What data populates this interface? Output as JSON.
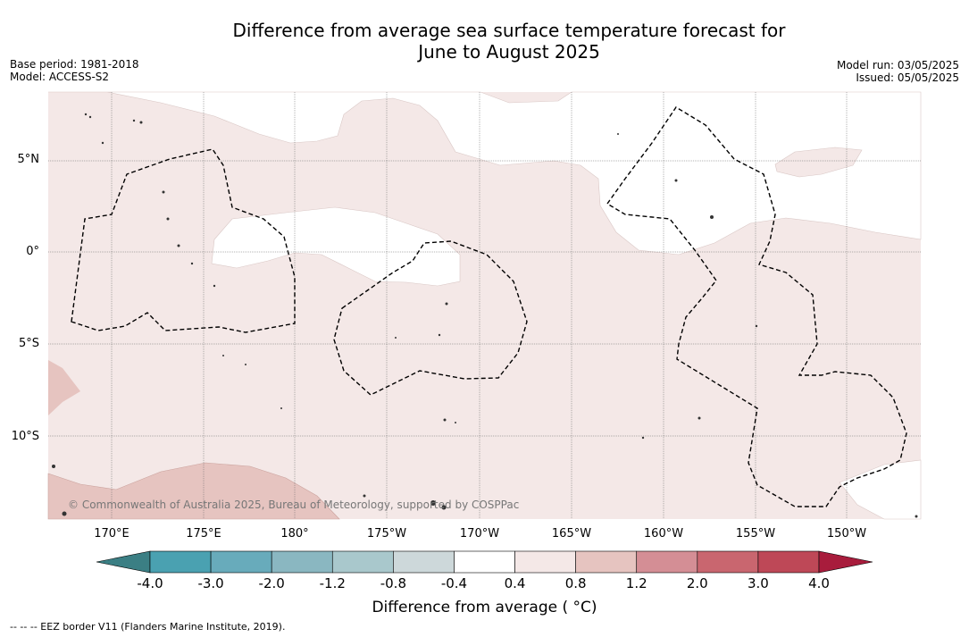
{
  "title_line1": "Difference from average sea surface temperature forecast for",
  "title_line2": "June to August 2025",
  "base_period": "Base period: 1981-2018",
  "model": "Model: ACCESS-S2",
  "model_run": "Model run: 03/05/2025",
  "issued": "Issued: 05/05/2025",
  "copyright": "© Commonwealth of Australia 2025, Bureau of Meteorology, supported by COSPPac",
  "lat_labels": [
    "5°N",
    "0°",
    "5°S",
    "10°S"
  ],
  "lon_labels": [
    "170°E",
    "175°E",
    "180°",
    "175°W",
    "170°W",
    "165°W",
    "160°W",
    "155°W",
    "150°W"
  ],
  "colorbar": {
    "title": "Difference from average ( °C)",
    "ticks": [
      "-4.0",
      "-3.0",
      "-2.0",
      "-1.2",
      "-0.8",
      "-0.4",
      "0.4",
      "0.8",
      "1.2",
      "2.0",
      "3.0",
      "4.0"
    ],
    "colors": [
      "#3b7f84",
      "#4aa1b1",
      "#68abbb",
      "#8ab7c1",
      "#a9c8cc",
      "#cdd8da",
      "#ffffff",
      "#f4e8e7",
      "#e6c4c0",
      "#d48e95",
      "#c9666f",
      "#be4857",
      "#a81c3c"
    ]
  },
  "footnote": "-- -- -- EEZ border V11 (Flanders Marine Institute, 2019)."
}
